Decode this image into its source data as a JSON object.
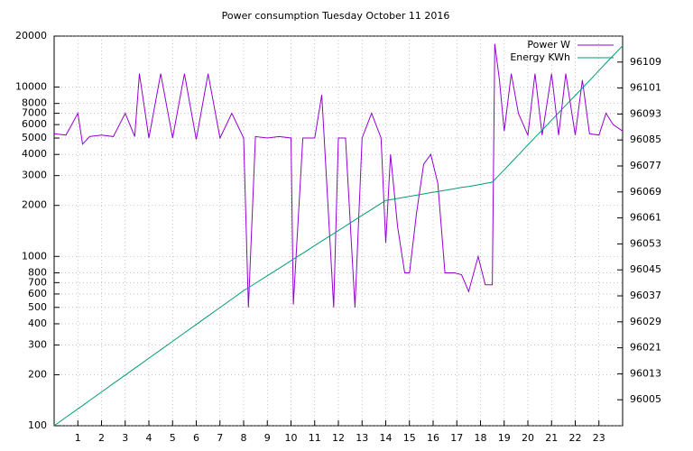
{
  "chart_data": {
    "type": "line",
    "title": "Power consumption Tuesday October 11 2016",
    "x": [
      0,
      0.5,
      1,
      1.2,
      1.5,
      2,
      2.5,
      3,
      3.4,
      3.6,
      4,
      4.5,
      5,
      5.5,
      6,
      6.5,
      7,
      7.5,
      8,
      8.2,
      8.5,
      9,
      9.5,
      10,
      10.1,
      10.5,
      11,
      11.3,
      11.8,
      12,
      12.3,
      12.7,
      13,
      13.4,
      13.8,
      14,
      14.2,
      14.5,
      14.8,
      15,
      15.3,
      15.6,
      15.9,
      16.2,
      16.5,
      16.9,
      17.2,
      17.5,
      17.9,
      18.2,
      18.5,
      18.6,
      18.8,
      19,
      19.3,
      19.6,
      20,
      20.3,
      20.6,
      21,
      21.3,
      21.6,
      22,
      22.3,
      22.6,
      23,
      23.3,
      23.6,
      24
    ],
    "series": [
      {
        "name": "Power W",
        "color": "#9400d3",
        "values": [
          5300,
          5200,
          7000,
          4600,
          5100,
          5200,
          5100,
          7000,
          5100,
          12000,
          5000,
          12000,
          5000,
          12000,
          4900,
          12000,
          5000,
          7000,
          5000,
          500,
          5100,
          5000,
          5100,
          5000,
          520,
          5000,
          5000,
          9000,
          500,
          5000,
          5000,
          500,
          5000,
          7000,
          5000,
          1200,
          4000,
          1500,
          800,
          800,
          1800,
          3500,
          4000,
          2700,
          800,
          800,
          780,
          620,
          1000,
          680,
          680,
          18000,
          11000,
          5500,
          12000,
          7000,
          5200,
          12000,
          5200,
          12000,
          5200,
          12000,
          5200,
          11000,
          5300,
          5200,
          7000,
          6000,
          5500
        ]
      },
      {
        "name": "Energy KWh",
        "color": "#009e73",
        "axis": "y2",
        "values": [
          95997,
          95999.6,
          96002.2,
          96003.2,
          96004.8,
          96007.4,
          96010,
          96012.6,
          96014.7,
          96015.7,
          96017.8,
          96020.4,
          96023,
          96025.6,
          96028.2,
          96030.8,
          96033.4,
          96036,
          96038.6,
          96039.5,
          96040.9,
          96043.2,
          96045.5,
          96047.8,
          96048.3,
          96050.1,
          96052.5,
          96053.9,
          96056.2,
          96057.1,
          96058.5,
          96060.4,
          96061.8,
          96063.6,
          96065.5,
          96066.4,
          96066.6,
          96067,
          96067.4,
          96067.6,
          96068,
          96068.4,
          96068.8,
          96069.1,
          96069.5,
          96070,
          96070.4,
          96070.7,
          96071.2,
          96071.6,
          96072,
          96072.8,
          96074.3,
          96075.8,
          96078.1,
          96080.4,
          96083.5,
          96085.8,
          96088,
          96091.1,
          96093.4,
          96095.7,
          96098.7,
          96101,
          96103.3,
          96106.4,
          96108.7,
          96111,
          96114
        ]
      }
    ],
    "xlim": [
      0,
      24
    ],
    "xticks": [
      1,
      2,
      3,
      4,
      5,
      6,
      7,
      8,
      9,
      10,
      11,
      12,
      13,
      14,
      15,
      16,
      17,
      18,
      19,
      20,
      21,
      22,
      23
    ],
    "ylim": [
      100,
      20000
    ],
    "ylog": true,
    "yticks": [
      100,
      200,
      300,
      400,
      500,
      600,
      700,
      800,
      1000,
      2000,
      3000,
      4000,
      5000,
      6000,
      7000,
      8000,
      10000,
      20000
    ],
    "y2lim": [
      95997,
      96117
    ],
    "y2ticks": [
      96005,
      96013,
      96021,
      96029,
      96037,
      96045,
      96053,
      96061,
      96069,
      96077,
      96085,
      96093,
      96101,
      96109
    ],
    "grid": true,
    "legend": "top-right"
  }
}
